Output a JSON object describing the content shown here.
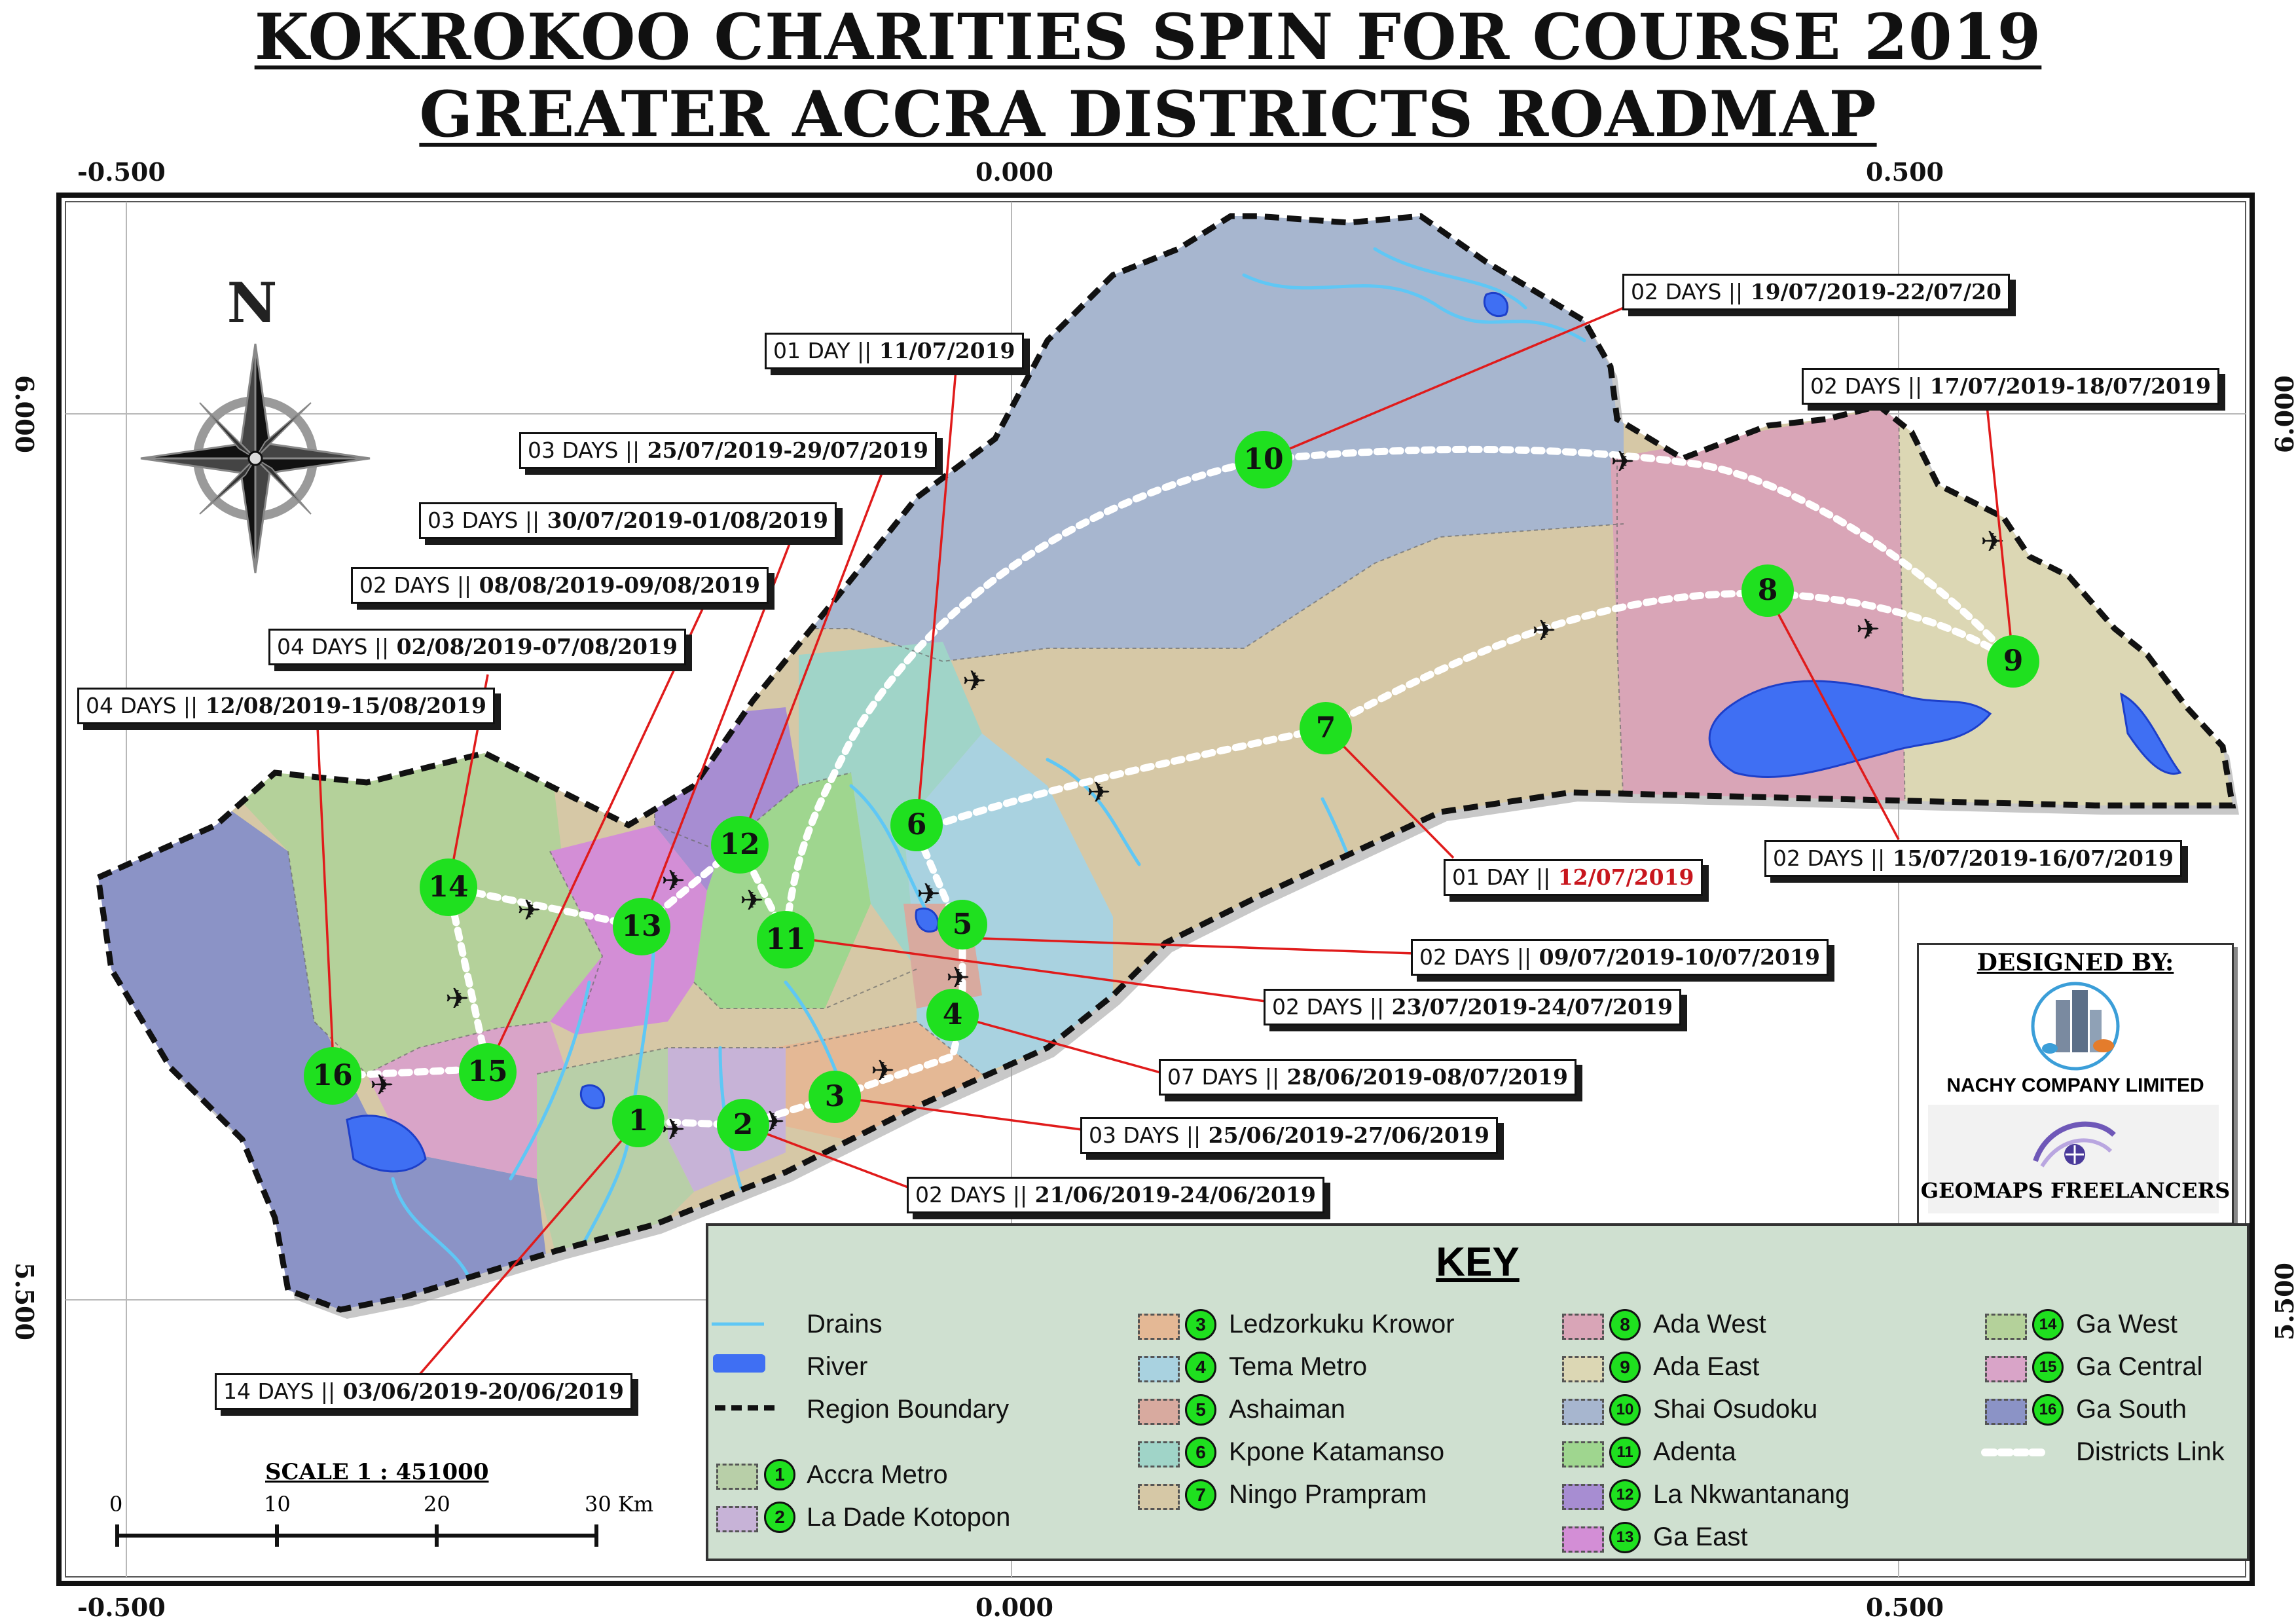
{
  "title": {
    "line1": "KOKROKOO CHARITIES SPIN FOR COURSE 2019",
    "line2": "GREATER ACCRA DISTRICTS ROADMAP"
  },
  "grid": {
    "top_labels": [
      "-0.500",
      "0.000",
      "0.500"
    ],
    "bottom_labels": [
      "-0.500",
      "0.000",
      "0.500"
    ],
    "left_labels": [
      "6.000",
      "5.500"
    ],
    "right_labels": [
      "6.000",
      "5.500"
    ]
  },
  "north_arrow": {
    "label": "N",
    "icon": "compass-rose-icon"
  },
  "map": {
    "river_color": "#3f6ff3",
    "drain_color": "#5fc7f5",
    "link_color": "#ffffff",
    "stop_color": "#1fe01f",
    "districts": [
      {
        "id": "ga-south",
        "color": "#8b93c6"
      },
      {
        "id": "ga-west",
        "color": "#b4d19a"
      },
      {
        "id": "ga-central",
        "color": "#d9a4c8"
      },
      {
        "id": "ga-east",
        "color": "#d38ed6"
      },
      {
        "id": "la-nkwantanang",
        "color": "#a78dd2"
      },
      {
        "id": "adenta",
        "color": "#9fd68f"
      },
      {
        "id": "accra-metro",
        "color": "#b8cfa8"
      },
      {
        "id": "la-dade-kotopon",
        "color": "#c7b3d7"
      },
      {
        "id": "ledzorkuku-krowor",
        "color": "#e4b895"
      },
      {
        "id": "ashaiman",
        "color": "#d8aa9f"
      },
      {
        "id": "tema-metro",
        "color": "#a9d2e0"
      },
      {
        "id": "kpone-katamanso",
        "color": "#a0d4c8"
      },
      {
        "id": "shai-osudoku",
        "color": "#a7b6cf"
      },
      {
        "id": "ningo-prampram",
        "color": "#d6c8a6"
      },
      {
        "id": "ada-west",
        "color": "#d9a5b7"
      },
      {
        "id": "ada-east",
        "color": "#dcd7b4"
      }
    ],
    "stops": [
      "1",
      "2",
      "3",
      "4",
      "5",
      "6",
      "7",
      "8",
      "9",
      "10",
      "11",
      "12",
      "13",
      "14",
      "15",
      "16"
    ]
  },
  "callouts": [
    {
      "id": "c1",
      "lead": "14 DAYS ||",
      "dates": "03/06/2019-20/06/2019"
    },
    {
      "id": "c2",
      "lead": "02 DAYS ||",
      "dates": "21/06/2019-24/06/2019"
    },
    {
      "id": "c3",
      "lead": "03 DAYS ||",
      "dates": "25/06/2019-27/06/2019"
    },
    {
      "id": "c4",
      "lead": "07 DAYS ||",
      "dates": "28/06/2019-08/07/2019"
    },
    {
      "id": "c5",
      "lead": "02 DAYS ||",
      "dates": "09/07/2019-10/07/2019"
    },
    {
      "id": "c6",
      "lead": "01 DAY ||",
      "dates": "11/07/2019"
    },
    {
      "id": "c7",
      "lead": "01 DAY ||",
      "dates": "12/07/2019"
    },
    {
      "id": "c8",
      "lead": "02 DAYS ||",
      "dates": "15/07/2019-16/07/2019"
    },
    {
      "id": "c9",
      "lead": "02 DAYS ||",
      "dates": "17/07/2019-18/07/2019"
    },
    {
      "id": "c10",
      "lead": "02 DAYS ||",
      "dates": "19/07/2019-22/07/20"
    },
    {
      "id": "c11",
      "lead": "02 DAYS ||",
      "dates": "23/07/2019-24/07/2019"
    },
    {
      "id": "c12",
      "lead": "03 DAYS ||",
      "dates": "25/07/2019-29/07/2019"
    },
    {
      "id": "c13",
      "lead": "03 DAYS ||",
      "dates": "30/07/2019-01/08/2019"
    },
    {
      "id": "c14",
      "lead": "04 DAYS ||",
      "dates": "02/08/2019-07/08/2019"
    },
    {
      "id": "c15",
      "lead": "02 DAYS ||",
      "dates": "08/08/2019-09/08/2019"
    },
    {
      "id": "c16",
      "lead": "04 DAYS ||",
      "dates": "12/08/2019-15/08/2019"
    }
  ],
  "designer": {
    "heading": "DESIGNED BY:",
    "company": "NACHY COMPANY LIMITED",
    "partner": "GEOMAPS FREELANCERS"
  },
  "key": {
    "title": "KEY",
    "symbols": [
      {
        "label": "Drains",
        "color": "#5fc7f5"
      },
      {
        "label": "River",
        "color": "#3f6ff3"
      },
      {
        "label": "Region Boundary",
        "color": "#111111"
      }
    ],
    "districts": [
      {
        "num": "1",
        "label": "Accra Metro",
        "color": "#b8cfa8"
      },
      {
        "num": "2",
        "label": "La Dade Kotopon",
        "color": "#c7b3d7"
      },
      {
        "num": "3",
        "label": "Ledzorkuku Krowor",
        "color": "#e4b895"
      },
      {
        "num": "4",
        "label": "Tema Metro",
        "color": "#a9d2e0"
      },
      {
        "num": "5",
        "label": "Ashaiman",
        "color": "#d8aa9f"
      },
      {
        "num": "6",
        "label": "Kpone Katamanso",
        "color": "#a0d4c8"
      },
      {
        "num": "7",
        "label": "Ningo Prampram",
        "color": "#d6c8a6"
      },
      {
        "num": "8",
        "label": "Ada West",
        "color": "#d9a5b7"
      },
      {
        "num": "9",
        "label": "Ada East",
        "color": "#dcd7b4"
      },
      {
        "num": "10",
        "label": "Shai Osudoku",
        "color": "#a7b6cf"
      },
      {
        "num": "11",
        "label": "Adenta",
        "color": "#9fd68f"
      },
      {
        "num": "12",
        "label": "La Nkwantanang",
        "color": "#a78dd2"
      },
      {
        "num": "13",
        "label": "Ga East",
        "color": "#d38ed6"
      },
      {
        "num": "14",
        "label": "Ga West",
        "color": "#b4d19a"
      },
      {
        "num": "15",
        "label": "Ga Central",
        "color": "#d9a4c8"
      },
      {
        "num": "16",
        "label": "Ga South",
        "color": "#8b93c6"
      }
    ],
    "link_label": "Districts Link"
  },
  "scale": {
    "title": "SCALE 1 : 451000",
    "ticks": [
      "0",
      "10",
      "20",
      "30 Km"
    ]
  }
}
